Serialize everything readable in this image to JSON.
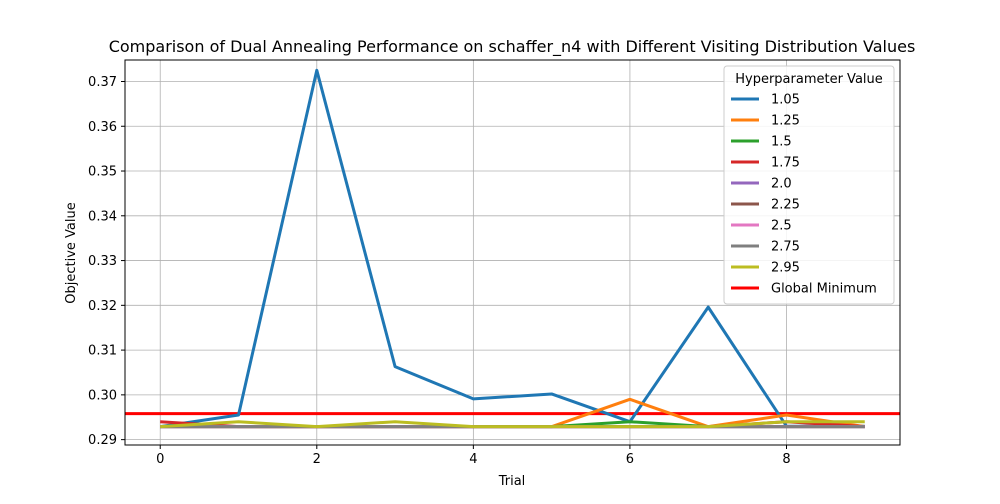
{
  "chart_data": {
    "type": "line",
    "title": "Comparison of Dual Annealing Performance on schaffer_n4 with Different Visiting Distribution Values",
    "xlabel": "Trial",
    "ylabel": "Objective Value",
    "xlim": [
      -0.45,
      9.45
    ],
    "ylim": [
      0.2888,
      0.3748
    ],
    "xticks": [
      0,
      2,
      4,
      6,
      8
    ],
    "yticks": [
      0.29,
      0.3,
      0.31,
      0.32,
      0.33,
      0.34,
      0.35,
      0.36,
      0.37
    ],
    "ytick_labels": [
      "0.29",
      "0.30",
      "0.31",
      "0.32",
      "0.33",
      "0.34",
      "0.35",
      "0.36",
      "0.37"
    ],
    "grid": true,
    "legend": {
      "title": "Hyperparameter Value",
      "position": "top-right"
    },
    "x": [
      0,
      1,
      2,
      3,
      4,
      5,
      6,
      7,
      8,
      9
    ],
    "series": [
      {
        "name": "1.05",
        "color": "#1f77b4",
        "values": [
          0.2929,
          0.2955,
          0.3725,
          0.3063,
          0.2991,
          0.3002,
          0.294,
          0.3196,
          0.293,
          0.293
        ]
      },
      {
        "name": "1.25",
        "color": "#ff7f0e",
        "values": [
          0.2929,
          0.2929,
          0.2929,
          0.2929,
          0.2929,
          0.2929,
          0.299,
          0.2929,
          0.2955,
          0.2929
        ]
      },
      {
        "name": "1.5",
        "color": "#2ca02c",
        "values": [
          0.2929,
          0.2929,
          0.2929,
          0.2929,
          0.2929,
          0.2929,
          0.294,
          0.2929,
          0.2929,
          0.2929
        ]
      },
      {
        "name": "1.75",
        "color": "#d62728",
        "values": [
          0.294,
          0.2929,
          0.2929,
          0.2929,
          0.2929,
          0.2929,
          0.2929,
          0.2929,
          0.294,
          0.2929
        ]
      },
      {
        "name": "2.0",
        "color": "#9467bd",
        "values": [
          0.2929,
          0.2929,
          0.2929,
          0.2929,
          0.2929,
          0.2929,
          0.2929,
          0.2929,
          0.2929,
          0.2929
        ]
      },
      {
        "name": "2.25",
        "color": "#8c564b",
        "values": [
          0.2929,
          0.2929,
          0.2929,
          0.2929,
          0.2929,
          0.2929,
          0.2929,
          0.2929,
          0.2929,
          0.2929
        ]
      },
      {
        "name": "2.5",
        "color": "#e377c2",
        "values": [
          0.2929,
          0.2929,
          0.2929,
          0.2929,
          0.2929,
          0.2929,
          0.2929,
          0.2929,
          0.2929,
          0.2929
        ]
      },
      {
        "name": "2.75",
        "color": "#7f7f7f",
        "values": [
          0.2929,
          0.2929,
          0.2929,
          0.2929,
          0.2929,
          0.2929,
          0.2929,
          0.2929,
          0.2929,
          0.2929
        ]
      },
      {
        "name": "2.95",
        "color": "#bcbd22",
        "values": [
          0.2929,
          0.294,
          0.2929,
          0.294,
          0.2929,
          0.2929,
          0.2929,
          0.2929,
          0.294,
          0.294
        ]
      }
    ],
    "reference_line": {
      "name": "Global Minimum",
      "color": "#ff0000",
      "value": 0.2958
    }
  }
}
